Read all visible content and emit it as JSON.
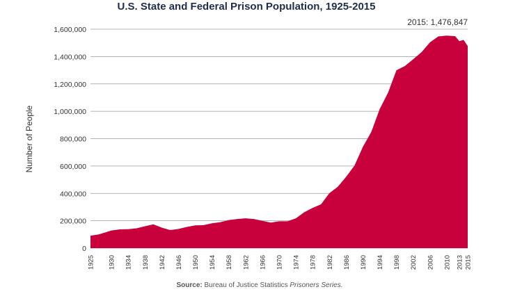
{
  "chart_data": {
    "type": "area",
    "title": "U.S. State and Federal Prison Population, 1925-2015",
    "xlabel": "",
    "ylabel": "Number of People",
    "ylim": [
      0,
      1600000
    ],
    "xlim": [
      1925,
      2015
    ],
    "y_ticks": [
      0,
      200000,
      400000,
      600000,
      800000,
      1000000,
      1200000,
      1400000,
      1600000
    ],
    "y_tick_labels": [
      "0",
      "200,000",
      "400,000",
      "600,000",
      "800,000",
      "1,000,000",
      "1,200,000",
      "1,400,000",
      "1,600,000"
    ],
    "x_ticks": [
      1925,
      1930,
      1934,
      1938,
      1942,
      1946,
      1950,
      1954,
      1958,
      1962,
      1966,
      1970,
      1974,
      1978,
      1982,
      1986,
      1990,
      1994,
      1998,
      2002,
      2006,
      2010,
      2013,
      2015
    ],
    "grid": true,
    "colors": {
      "area": "#c8003c",
      "title": "#1f2d4a"
    },
    "series": [
      {
        "name": "Prison population",
        "x": [
          1925,
          1927,
          1930,
          1932,
          1934,
          1936,
          1938,
          1940,
          1942,
          1944,
          1946,
          1948,
          1950,
          1952,
          1954,
          1956,
          1958,
          1960,
          1962,
          1964,
          1966,
          1968,
          1970,
          1972,
          1974,
          1976,
          1978,
          1980,
          1982,
          1984,
          1986,
          1988,
          1990,
          1992,
          1994,
          1996,
          1998,
          2000,
          2002,
          2004,
          2006,
          2008,
          2010,
          2012,
          2013,
          2014,
          2015
        ],
        "values": [
          91000,
          100000,
          129000,
          137000,
          138000,
          145000,
          160000,
          174000,
          150000,
          132000,
          140000,
          155000,
          166000,
          168000,
          182000,
          190000,
          205000,
          213000,
          218000,
          213000,
          199000,
          187000,
          196000,
          196000,
          218000,
          262000,
          294000,
          320000,
          402000,
          448000,
          522000,
          604000,
          740000,
          850000,
          1016000,
          1137000,
          1300000,
          1331000,
          1380000,
          1433000,
          1504000,
          1547000,
          1553000,
          1549000,
          1512000,
          1522000,
          1476847
        ]
      }
    ],
    "annotations": [
      {
        "text": "2015: 1,476,847",
        "x": 2015,
        "y": 1476847
      }
    ],
    "source": {
      "prefix": "Source:",
      "text": "Bureau of Justice Statistics",
      "italic": "Prisoners Series."
    }
  }
}
